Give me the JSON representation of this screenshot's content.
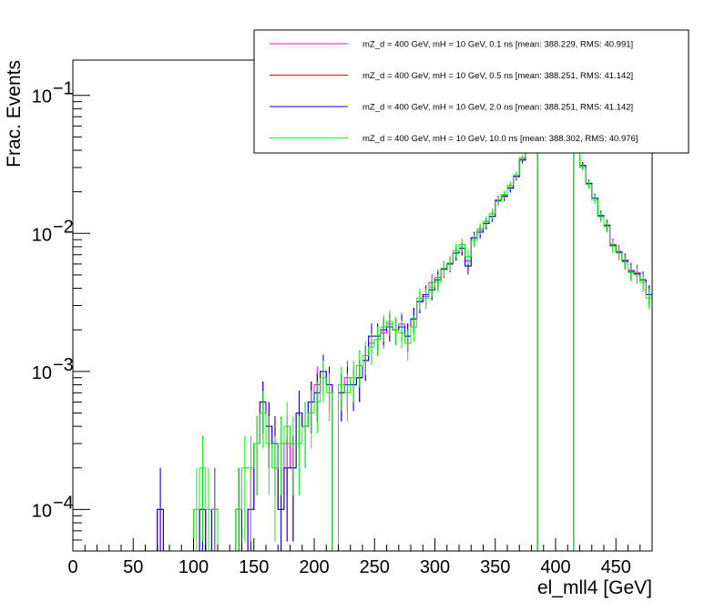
{
  "chart_data": {
    "type": "histogram",
    "xlabel": "el_mll4 [GeV]",
    "ylabel": "Frac. Events",
    "xlim": [
      0,
      480
    ],
    "ylim": [
      5e-05,
      0.18
    ],
    "log_y": true,
    "grid": false,
    "legend_position": "top-right",
    "x_ticks": [
      0,
      50,
      100,
      150,
      200,
      250,
      300,
      350,
      400,
      450
    ],
    "x_tick_labels": [
      "0",
      "50",
      "100",
      "150",
      "200",
      "250",
      "300",
      "350",
      "400",
      "450"
    ],
    "y_ticks": [
      0.0001,
      0.001,
      0.01,
      0.1
    ],
    "y_tick_base": [
      "10",
      "10",
      "10",
      "10"
    ],
    "y_tick_exp": [
      "−4",
      "−3",
      "−2",
      "−1"
    ],
    "bin_width": 5,
    "bin_centers": [
      72.5,
      77.5,
      102.5,
      107.5,
      112.5,
      117.5,
      137.5,
      142.5,
      147.5,
      152.5,
      157.5,
      162.5,
      167.5,
      172.5,
      177.5,
      182.5,
      187.5,
      192.5,
      197.5,
      202.5,
      207.5,
      212.5,
      217.5,
      222.5,
      227.5,
      232.5,
      237.5,
      242.5,
      247.5,
      252.5,
      257.5,
      262.5,
      267.5,
      272.5,
      277.5,
      282.5,
      287.5,
      292.5,
      297.5,
      302.5,
      307.5,
      312.5,
      317.5,
      322.5,
      327.5,
      332.5,
      337.5,
      342.5,
      347.5,
      352.5,
      357.5,
      362.5,
      367.5,
      372.5,
      377.5,
      382.5,
      417.5,
      422.5,
      427.5,
      432.5,
      437.5,
      442.5,
      447.5,
      452.5,
      457.5,
      462.5,
      467.5,
      472.5,
      477.5
    ],
    "series": [
      {
        "name": "mZ_d = 400 GeV, mH = 10 GeV, 0.1 ns [mean: 388.229, RMS: 40.991]",
        "color": "#ff00ff",
        "values": [
          0.0001,
          0,
          0,
          0.0001,
          0,
          0.0001,
          0.0001,
          0,
          0.0001,
          0.0003,
          0.0006,
          0.0004,
          0.0003,
          0.0001,
          0.0003,
          0.0002,
          0.0005,
          0.0004,
          0.0006,
          0.0008,
          0.001,
          0.0008,
          0,
          0.0007,
          0.0009,
          0.0008,
          0.0009,
          0.0012,
          0.0016,
          0.0017,
          0.0019,
          0.0022,
          0.002,
          0.0022,
          0.0018,
          0.0024,
          0.0032,
          0.0035,
          0.0044,
          0.0048,
          0.0055,
          0.006,
          0.0072,
          0.0078,
          0.0063,
          0.0092,
          0.0105,
          0.0118,
          0.0132,
          0.0175,
          0.0188,
          0.0215,
          0.026,
          0.0345,
          0.052,
          0.078,
          0.042,
          0.031,
          0.023,
          0.018,
          0.0135,
          0.0115,
          0.0083,
          0.0074,
          0.0064,
          0.0054,
          0.0052,
          0.0046,
          0.0036
        ]
      },
      {
        "name": "mZ_d = 400 GeV, mH = 10 GeV, 0.5 ns [mean: 388.251, RMS: 41.142]",
        "color": "#ff0000",
        "values": [
          0.0001,
          0,
          0,
          0.0001,
          0,
          0.0001,
          0.0001,
          0,
          0.0001,
          0.0003,
          0.0006,
          0.0004,
          0.0003,
          0.0001,
          0.0002,
          0.0002,
          0.0005,
          0.0004,
          0.0006,
          0.0007,
          0.001,
          0.0008,
          0,
          0.0007,
          0.0008,
          0.0008,
          0.0009,
          0.0012,
          0.0018,
          0.0018,
          0.002,
          0.0021,
          0.002,
          0.0021,
          0.0018,
          0.0024,
          0.0032,
          0.0036,
          0.0039,
          0.0046,
          0.0055,
          0.006,
          0.0072,
          0.0078,
          0.0058,
          0.0093,
          0.0102,
          0.0118,
          0.0133,
          0.0172,
          0.0185,
          0.0212,
          0.0258,
          0.034,
          0.052,
          0.078,
          0.042,
          0.031,
          0.023,
          0.018,
          0.0134,
          0.0114,
          0.0082,
          0.0073,
          0.0063,
          0.0053,
          0.0051,
          0.0046,
          0.0036
        ]
      },
      {
        "name": "mZ_d = 400 GeV, mH = 10 GeV, 2.0 ns [mean: 388.251, RMS: 41.142]",
        "color": "#0000ff",
        "values": [
          0.0001,
          0,
          0,
          0.0001,
          0,
          0.0001,
          0.0001,
          0,
          0.0001,
          0.0003,
          0.0006,
          0.0004,
          0.0003,
          0.0001,
          0.0002,
          0.0002,
          0.0005,
          0.0004,
          0.0006,
          0.0007,
          0.001,
          0.0008,
          0,
          0.0007,
          0.0008,
          0.0008,
          0.0009,
          0.0012,
          0.0018,
          0.0018,
          0.002,
          0.0021,
          0.002,
          0.0021,
          0.0018,
          0.0024,
          0.0032,
          0.0036,
          0.0039,
          0.0046,
          0.0055,
          0.006,
          0.0072,
          0.0078,
          0.0058,
          0.0093,
          0.0102,
          0.0118,
          0.0133,
          0.0172,
          0.0185,
          0.0212,
          0.0258,
          0.034,
          0.052,
          0.078,
          0.042,
          0.031,
          0.023,
          0.018,
          0.0134,
          0.0114,
          0.0082,
          0.0073,
          0.0063,
          0.0053,
          0.0051,
          0.0046,
          0.0036
        ]
      },
      {
        "name": "mZ_d = 400 GeV, mH = 10 GeV, 10.0 ns [mean: 388.302, RMS: 40.976]",
        "color": "#00ff00",
        "values": [
          0,
          0,
          0.0001,
          0.0002,
          0.0001,
          0.0001,
          0.0001,
          0.0002,
          0.0002,
          0.0003,
          0.0005,
          0.0003,
          0.0002,
          0.0003,
          0.0004,
          0.0003,
          0.0003,
          0.0004,
          0.0005,
          0.0006,
          0.0009,
          0.0007,
          0,
          0.0008,
          0.0007,
          0.0009,
          0.0011,
          0.0013,
          0.0015,
          0.0017,
          0.0021,
          0.0023,
          0.002,
          0.0019,
          0.0016,
          0.0021,
          0.0034,
          0.0034,
          0.0041,
          0.0044,
          0.0056,
          0.0061,
          0.0075,
          0.0083,
          0.0068,
          0.0089,
          0.0108,
          0.0122,
          0.0139,
          0.0171,
          0.0191,
          0.0223,
          0.0265,
          0.0355,
          0.052,
          0.078,
          0.041,
          0.03,
          0.0225,
          0.0175,
          0.0132,
          0.0112,
          0.0081,
          0.0072,
          0.0062,
          0.0052,
          0.005,
          0.0044,
          0.0034
        ]
      }
    ]
  }
}
